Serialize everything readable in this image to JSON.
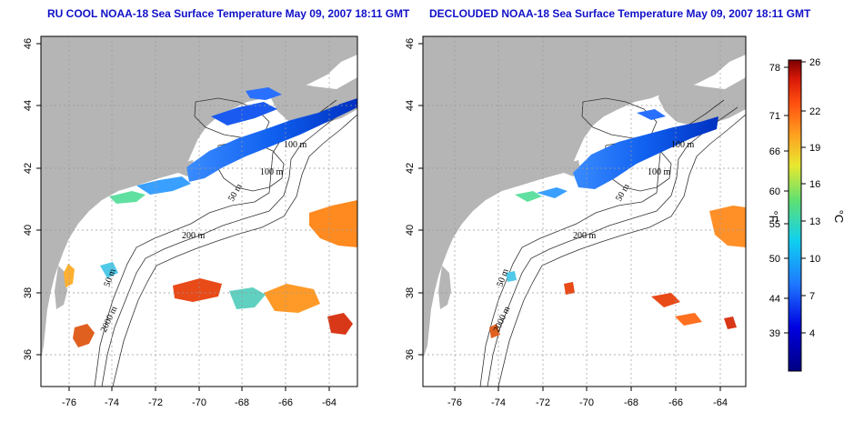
{
  "panels": [
    {
      "id": "left",
      "title": "RU COOL NOAA-18 Sea Surface Temperature May 09, 2007 18:11 GMT",
      "contour_labels": [
        "100 m",
        "100 m",
        "50 m",
        "200 m",
        "50 m",
        "2000 m"
      ]
    },
    {
      "id": "right",
      "title": "DECLOUDED NOAA-18 Sea Surface Temperature May 09, 2007 18:11 GMT",
      "contour_labels": [
        "100 m",
        "100 m",
        "50 m",
        "200 m",
        "50 m",
        "2000 m"
      ]
    }
  ],
  "axes": {
    "lon_ticks": [
      "-76",
      "-74",
      "-72",
      "-70",
      "-68",
      "-66",
      "-64"
    ],
    "lat_ticks": [
      "36",
      "38",
      "40",
      "42",
      "44",
      "46"
    ]
  },
  "colorbar": {
    "unit_f": "°F",
    "unit_c": "°C",
    "f_ticks": [
      "78",
      "71",
      "66",
      "60",
      "55",
      "50",
      "44",
      "39"
    ],
    "c_ticks": [
      "26",
      "22",
      "19",
      "16",
      "13",
      "10",
      "7",
      "4"
    ]
  },
  "colors": {
    "land": "#b5b5b5",
    "ocean": "#ffffff",
    "title": "#1010c8"
  }
}
